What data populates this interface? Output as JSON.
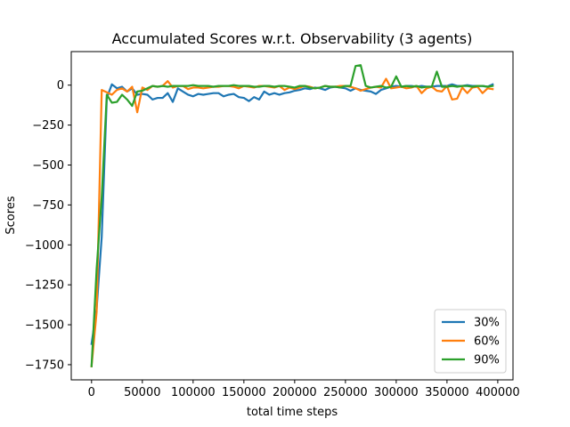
{
  "chart_data": {
    "type": "line",
    "title": "Accumulated Scores w.r.t. Observability (3 agents)",
    "xlabel": "total time steps",
    "ylabel": "Scores",
    "xlim": [
      -20000,
      415000
    ],
    "ylim": [
      -1845,
      210
    ],
    "xticks": [
      0,
      50000,
      100000,
      150000,
      200000,
      250000,
      300000,
      350000,
      400000
    ],
    "xtick_labels": [
      "0",
      "50000",
      "100000",
      "150000",
      "200000",
      "250000",
      "300000",
      "350000",
      "400000"
    ],
    "yticks": [
      -1750,
      -1500,
      -1250,
      -1000,
      -750,
      -500,
      -250,
      0
    ],
    "ytick_labels": [
      "−1750",
      "−1500",
      "−1250",
      "−1000",
      "−750",
      "−500",
      "−250",
      "0"
    ],
    "grid": false,
    "legend_position": "lower-right",
    "series": [
      {
        "name": "30%",
        "color": "#1f77b4",
        "x": [
          0,
          5000,
          10000,
          15000,
          20000,
          25000,
          30000,
          35000,
          40000,
          45000,
          50000,
          55000,
          60000,
          65000,
          70000,
          75000,
          80000,
          85000,
          90000,
          95000,
          100000,
          105000,
          110000,
          115000,
          120000,
          125000,
          130000,
          135000,
          140000,
          145000,
          150000,
          155000,
          160000,
          165000,
          170000,
          175000,
          180000,
          185000,
          190000,
          195000,
          200000,
          205000,
          210000,
          215000,
          220000,
          225000,
          230000,
          235000,
          240000,
          245000,
          250000,
          255000,
          260000,
          265000,
          270000,
          275000,
          280000,
          285000,
          290000,
          295000,
          300000,
          305000,
          310000,
          315000,
          320000,
          325000,
          330000,
          335000,
          340000,
          345000,
          350000,
          355000,
          360000,
          365000,
          370000,
          375000,
          380000,
          385000,
          390000,
          395000
        ],
        "y": [
          -1620,
          -1400,
          -950,
          -80,
          5,
          -20,
          -10,
          -40,
          -20,
          -60,
          -55,
          -60,
          -90,
          -80,
          -80,
          -50,
          -105,
          -20,
          -40,
          -60,
          -70,
          -55,
          -60,
          -55,
          -50,
          -50,
          -70,
          -60,
          -55,
          -75,
          -80,
          -100,
          -75,
          -90,
          -40,
          -60,
          -50,
          -60,
          -50,
          -45,
          -35,
          -30,
          -20,
          -25,
          -15,
          -20,
          -30,
          -15,
          -10,
          -15,
          -20,
          -35,
          -20,
          -30,
          -35,
          -40,
          -55,
          -30,
          -20,
          -10,
          -5,
          -10,
          -5,
          -5,
          -10,
          -5,
          -10,
          -10,
          -5,
          -5,
          -5,
          5,
          -5,
          -5,
          0,
          -5,
          -5,
          -5,
          -10,
          5
        ]
      },
      {
        "name": "60%",
        "color": "#ff7f0e",
        "x": [
          0,
          5000,
          10000,
          15000,
          20000,
          25000,
          30000,
          35000,
          40000,
          45000,
          50000,
          55000,
          60000,
          65000,
          70000,
          75000,
          80000,
          85000,
          90000,
          95000,
          100000,
          105000,
          110000,
          115000,
          120000,
          125000,
          130000,
          135000,
          140000,
          145000,
          150000,
          155000,
          160000,
          165000,
          170000,
          175000,
          180000,
          185000,
          190000,
          195000,
          200000,
          205000,
          210000,
          215000,
          220000,
          225000,
          230000,
          235000,
          240000,
          245000,
          250000,
          255000,
          260000,
          265000,
          270000,
          275000,
          280000,
          285000,
          290000,
          295000,
          300000,
          305000,
          310000,
          315000,
          320000,
          325000,
          330000,
          335000,
          340000,
          345000,
          350000,
          355000,
          360000,
          365000,
          370000,
          375000,
          380000,
          385000,
          390000,
          395000
        ],
        "y": [
          -1760,
          -1420,
          -30,
          -45,
          -60,
          -30,
          -20,
          -40,
          -10,
          -170,
          -15,
          -30,
          -5,
          -10,
          -5,
          25,
          -15,
          -5,
          -5,
          -25,
          -15,
          -15,
          -20,
          -15,
          -10,
          -10,
          -5,
          -5,
          -10,
          -20,
          -5,
          -10,
          -15,
          -5,
          -5,
          -10,
          -15,
          -5,
          -30,
          -15,
          -25,
          -15,
          -5,
          -10,
          -20,
          -15,
          -5,
          -10,
          -10,
          -5,
          -5,
          -10,
          -20,
          -35,
          -25,
          -15,
          -10,
          -15,
          40,
          -20,
          -15,
          -10,
          -20,
          -15,
          -5,
          -50,
          -20,
          -10,
          -35,
          -40,
          -5,
          -90,
          -85,
          -15,
          -50,
          -15,
          -10,
          -50,
          -20,
          -25
        ]
      },
      {
        "name": "90%",
        "color": "#2ca02c",
        "x": [
          0,
          5000,
          10000,
          15000,
          20000,
          25000,
          30000,
          35000,
          40000,
          45000,
          50000,
          55000,
          60000,
          65000,
          70000,
          75000,
          80000,
          85000,
          90000,
          95000,
          100000,
          105000,
          110000,
          115000,
          120000,
          125000,
          130000,
          135000,
          140000,
          145000,
          150000,
          155000,
          160000,
          165000,
          170000,
          175000,
          180000,
          185000,
          190000,
          195000,
          200000,
          205000,
          210000,
          215000,
          220000,
          225000,
          230000,
          235000,
          240000,
          245000,
          250000,
          255000,
          260000,
          265000,
          270000,
          275000,
          280000,
          285000,
          290000,
          295000,
          300000,
          305000,
          310000,
          315000,
          320000,
          325000,
          330000,
          335000,
          340000,
          345000,
          350000,
          355000,
          360000,
          365000,
          370000,
          375000,
          380000,
          385000,
          390000,
          395000
        ],
        "y": [
          -1760,
          -1150,
          -700,
          -60,
          -110,
          -105,
          -60,
          -90,
          -130,
          -40,
          -35,
          -20,
          -5,
          -10,
          -5,
          -10,
          -5,
          -5,
          -5,
          -5,
          0,
          -5,
          -5,
          -5,
          -10,
          -5,
          -5,
          -5,
          0,
          -5,
          -5,
          -5,
          -10,
          -10,
          -5,
          -5,
          -10,
          -5,
          -5,
          -10,
          -15,
          -5,
          -5,
          -15,
          -20,
          -15,
          -5,
          -10,
          -10,
          -15,
          -5,
          -5,
          120,
          125,
          -5,
          -15,
          -10,
          -5,
          -15,
          -10,
          55,
          -10,
          -5,
          -10,
          -5,
          -15,
          -10,
          -10,
          85,
          -10,
          -10,
          -5,
          -10,
          -5,
          -5,
          -10,
          -5,
          -5,
          -10,
          -5
        ]
      }
    ]
  }
}
